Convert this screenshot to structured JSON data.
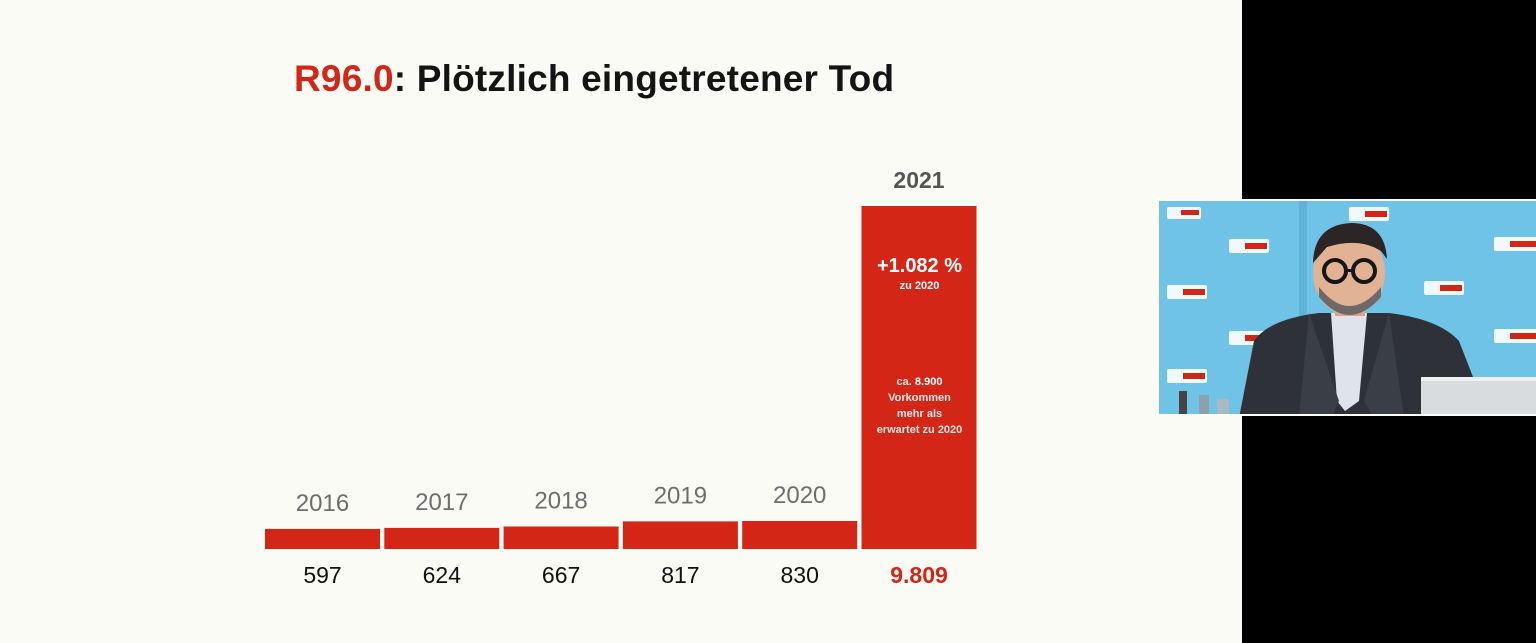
{
  "slide": {
    "title_code": "R96.0",
    "title_rest": ": Plötzlich eingetretener Tod"
  },
  "chart_data": {
    "type": "bar",
    "title": "R96.0: Plötzlich eingetretener Tod",
    "categories": [
      "2016",
      "2017",
      "2018",
      "2019",
      "2020",
      "2021"
    ],
    "values": [
      597,
      624,
      667,
      817,
      830,
      9809
    ],
    "value_labels": [
      "597",
      "624",
      "667",
      "817",
      "830",
      "9.809"
    ],
    "highlight_index": 5,
    "annotations": {
      "percent_change": "+1.082 %",
      "percent_change_ref": "zu 2020",
      "note_prefix": "ca.",
      "note_value": "8.900",
      "note_text": "Vorkommen mehr als erwartet zu 2020"
    },
    "bar_color": "#d42617",
    "grid": false,
    "axes_visible": false
  },
  "webcam": {
    "colors": {
      "backdrop": "#6ec3e6",
      "jacket": "#2e3238",
      "shirt": "#dfe4ea"
    }
  }
}
